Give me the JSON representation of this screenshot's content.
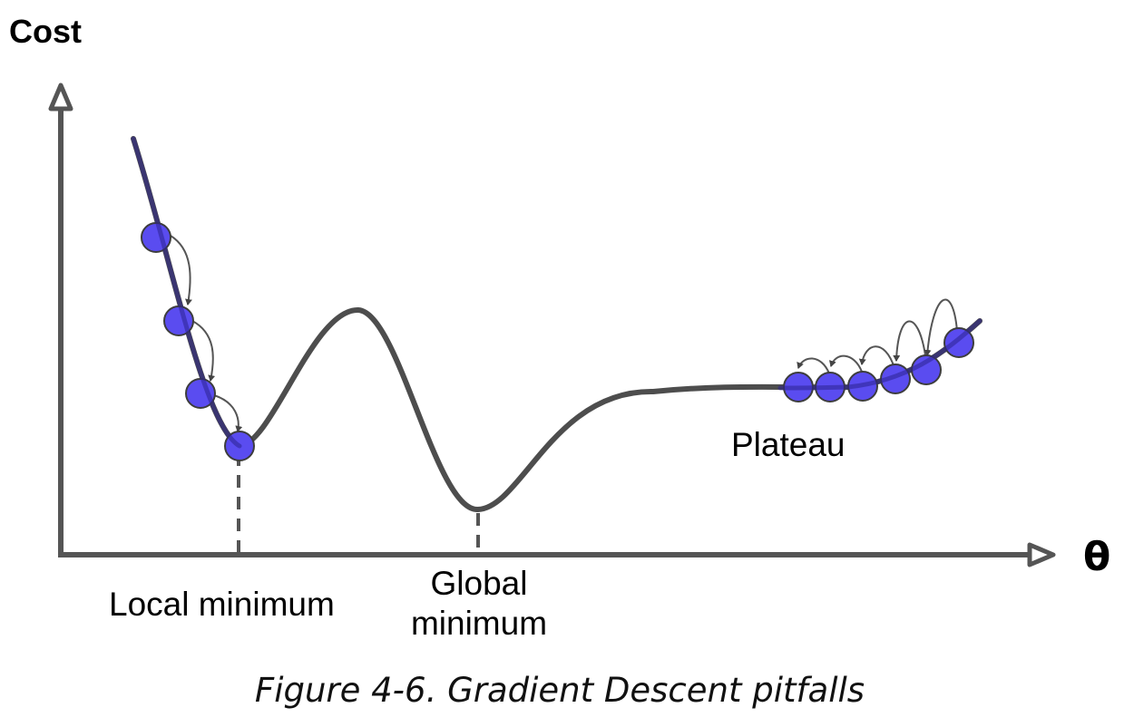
{
  "labels": {
    "y_axis": "Cost",
    "x_axis": "θ",
    "local_minimum": "Local minimum",
    "global_minimum": "Global minimum",
    "plateau": "Plateau"
  },
  "caption": "Figure 4-6. Gradient Descent pitfalls",
  "colors": {
    "curve": "#4d4d4d",
    "ball_fill": "#5a4cf0",
    "ball_stroke": "#3d3d3d",
    "axis": "#555555"
  }
}
